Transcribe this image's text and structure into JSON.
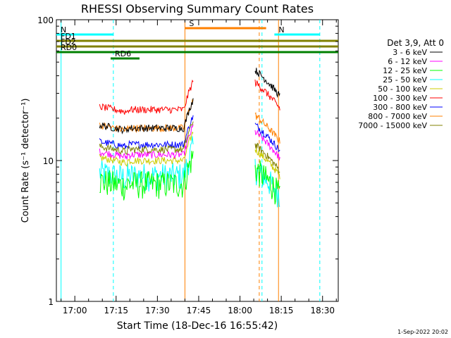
{
  "chart_data": {
    "type": "line",
    "title": "RHESSI Observing Summary Count Rates",
    "xlabel": "Start Time (18-Dec-16 16:55:42)",
    "ylabel": "Count Rate (s⁻¹ detector⁻¹)",
    "yscale": "log",
    "ylim": [
      1,
      100
    ],
    "y_ticks": [
      {
        "v": 1,
        "label": "1"
      },
      {
        "v": 10,
        "label": "10"
      },
      {
        "v": 100,
        "label": "100"
      }
    ],
    "xlim_minutes": [
      -5.7,
      37.3
    ],
    "x_ticks": [
      {
        "m": 0,
        "label": "17:00"
      },
      {
        "m": 15,
        "label": "17:15"
      },
      {
        "m": 30,
        "label": "17:30"
      },
      {
        "m": 45,
        "label": "17:45"
      },
      {
        "m": 60,
        "label": "18:00"
      },
      {
        "m": 75,
        "label": "18:15"
      },
      {
        "m": 90,
        "label": "18:30"
      }
    ],
    "date_stamp": "1-Sep-2022 20:02",
    "legend_title": "Det 3,9, Att 0",
    "legend_position": "right",
    "series": [
      {
        "name": "3 - 6 keV",
        "color": "#000000",
        "level_a": 17,
        "level_b": 44
      },
      {
        "name": "6 - 12 keV",
        "color": "#ff00ff",
        "level_a": 11,
        "level_b": 16
      },
      {
        "name": "12 - 25 keV",
        "color": "#00ff00",
        "level_a": 7,
        "level_b": 9
      },
      {
        "name": "25 - 50 keV",
        "color": "#00ffff",
        "level_a": 8,
        "level_b": 9
      },
      {
        "name": "50 - 100 keV",
        "color": "#cccc00",
        "level_a": 10,
        "level_b": 12
      },
      {
        "name": "100 - 300 keV",
        "color": "#ff0000",
        "level_a": 23,
        "level_b": 36
      },
      {
        "name": "300 - 800 keV",
        "color": "#0000ff",
        "level_a": 13,
        "level_b": 18
      },
      {
        "name": "800 - 7000 keV",
        "color": "#ff8000",
        "level_a": 17,
        "level_b": 21
      },
      {
        "name": "7000 - 15000 keV",
        "color": "#808000",
        "level_a": 12,
        "level_b": 13
      }
    ],
    "data_intervals_minutes": [
      [
        9.0,
        43.0
      ],
      [
        65.5,
        74.5
      ]
    ],
    "flag_bars": [
      {
        "label": "N",
        "color": "#00ffff",
        "start": -5.7,
        "end": 14.0,
        "level": 1
      },
      {
        "label": "N",
        "color": "#00ffff",
        "start": 72.5,
        "end": 89.0,
        "level": 1
      },
      {
        "label": "S",
        "color": "#ff8000",
        "start": 40.0,
        "end": 69.5,
        "level": 0
      },
      {
        "label": "FD1",
        "color": "#808000",
        "start": -5.7,
        "end": 37.3,
        "level": 3
      },
      {
        "label": "FD2",
        "color": "#808000",
        "start": -5.7,
        "end": 37.3,
        "level": 4
      },
      {
        "label": "RD0",
        "color": "#008000",
        "start": -5.7,
        "end": 37.3,
        "level": 5
      },
      {
        "label": "RD6",
        "color": "#008000",
        "start": 13.0,
        "end": 23.5,
        "level": 6
      }
    ],
    "vertical_markers": [
      {
        "m": -5.0,
        "color": "#00ffff",
        "style": "solid"
      },
      {
        "m": 14.0,
        "color": "#00ffff",
        "style": "dash"
      },
      {
        "m": 40.0,
        "color": "#ff8000",
        "style": "solid"
      },
      {
        "m": 67.0,
        "color": "#ff8000",
        "style": "dash"
      },
      {
        "m": 68.0,
        "color": "#00ffff",
        "style": "dash"
      },
      {
        "m": 74.0,
        "color": "#ff8000",
        "style": "solid"
      },
      {
        "m": 89.0,
        "color": "#00ffff",
        "style": "dash"
      }
    ]
  }
}
